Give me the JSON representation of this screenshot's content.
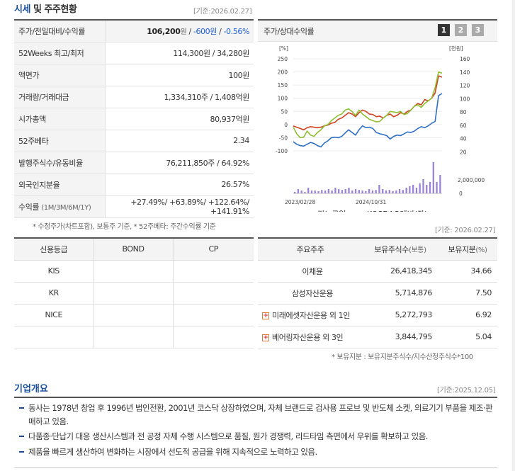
{
  "price_section": {
    "title_highlight": "시세",
    "title_rest": " 및 주주현황",
    "date": "[기준:2026.02.27]",
    "rows": [
      {
        "label": "주가/전일대비/수익률",
        "price": "106,200",
        "price_unit": "원",
        "sep1": " / ",
        "change": "-600",
        "change_unit": "원",
        "sep2": " / ",
        "rate": "-0.56%"
      },
      {
        "label": "52Weeks 최고/최저",
        "value": "114,300원 / 34,280원"
      },
      {
        "label": "액면가",
        "value": "100원"
      },
      {
        "label": "거래량/거래대금",
        "value": "1,334,310주 / 1,408억원"
      },
      {
        "label": "시가총액",
        "value": "80,937억원"
      },
      {
        "label": "52주베타",
        "value": "2.34"
      },
      {
        "label": "발행주식수/유동비율",
        "value": "76,211,850주 / 64.92%"
      },
      {
        "label": "외국인지분율",
        "value": "26.57%"
      }
    ],
    "returns": {
      "label": "수익률",
      "periods": "(1M/3M/6M/1Y)",
      "value": "+27.49%/ +63.89%/ +122.64%/ +141.91%"
    },
    "footnote": "* 수정주가(차트포함), 보통주 기준, * 52주베타: 주간수익률 기준"
  },
  "chart_box": {
    "title": "주가/상대수익률",
    "pages": [
      "1",
      "2",
      "3"
    ]
  },
  "chart_data": {
    "type": "line",
    "left_axis_unit": "[%]",
    "right_axis_unit": "[천원]",
    "left_ticks": [
      "250",
      "200",
      "150",
      "100",
      "50",
      "0",
      "-50",
      "-100"
    ],
    "right_ticks": [
      "160",
      "140",
      "120",
      "100",
      "80",
      "60",
      "40",
      "20"
    ],
    "volume_ticks": [
      "2,000,000",
      "0"
    ],
    "x_ticks": [
      "2023/02/28",
      "2024/10/31"
    ],
    "ylim_left": [
      -100,
      250
    ],
    "series": [
      {
        "name": "리노공업",
        "color": "#2e6fc6",
        "values": [
          -65,
          -75,
          -80,
          -82,
          -75,
          -68,
          -72,
          -80,
          -85,
          -70,
          -62,
          -50,
          -48,
          -50,
          -45,
          -32,
          -20,
          -30,
          -40,
          -20,
          -5,
          -12,
          -10,
          -15,
          -30,
          -35,
          -38,
          -42,
          -55,
          -45,
          -40,
          -42,
          -35,
          -28,
          -30,
          -25,
          -15,
          -8,
          -12,
          -5,
          5,
          12,
          110,
          118
        ]
      },
      {
        "name": "KOSDAQ대비(좌)",
        "color": "#d0401e",
        "values": [
          -5,
          -10,
          -15,
          -20,
          -12,
          -8,
          -10,
          -12,
          -10,
          -5,
          -2,
          5,
          8,
          20,
          25,
          35,
          45,
          40,
          30,
          45,
          55,
          50,
          40,
          38,
          30,
          32,
          25,
          35,
          40,
          30,
          35,
          45,
          40,
          50,
          55,
          70,
          80,
          75,
          95,
          90,
          100,
          120,
          185,
          180
        ]
      },
      {
        "name": "코스닥 전기·전자대비(좌)",
        "color": "#8dbf2e",
        "values": [
          -10,
          -35,
          -50,
          -48,
          -25,
          -40,
          -45,
          -30,
          -20,
          -5,
          0,
          15,
          25,
          35,
          40,
          55,
          60,
          50,
          35,
          55,
          40,
          30,
          20,
          15,
          10,
          12,
          25,
          35,
          50,
          48,
          45,
          50,
          38,
          42,
          55,
          70,
          75,
          65,
          80,
          90,
          100,
          140,
          200,
          195
        ]
      }
    ],
    "volume": {
      "name": "거래량",
      "color": "#9a82d6",
      "values": [
        0.05,
        0.15,
        0.1,
        0.05,
        0.2,
        0.1,
        0.1,
        0.08,
        0.12,
        0.1,
        0.15,
        0.1,
        0.2,
        0.15,
        0.12,
        0.15,
        0.2,
        0.1,
        0.15,
        0.12,
        0.1,
        0.08,
        0.15,
        0.1,
        0.12,
        0.3,
        0.15,
        0.1,
        0.12,
        0.08,
        0.1,
        0.15,
        0.12,
        0.2,
        0.25,
        0.3,
        0.2,
        0.35,
        0.5,
        0.3,
        0.4,
        1.1,
        0.4,
        0.65
      ]
    },
    "legend": [
      {
        "name": "리노공업",
        "color": "#2e6fc6",
        "kind": "line"
      },
      {
        "name": "KOSDAQ대비(좌)",
        "color": "#d0401e",
        "kind": "line"
      },
      {
        "name": "코스닥 전기·전자대비(좌)",
        "color": "#8dbf2e",
        "kind": "line"
      },
      {
        "name": "거래량",
        "color": "#9a82d6",
        "kind": "box"
      }
    ]
  },
  "chart_date": "[기준: 2026.02.27]",
  "credit": {
    "headers": [
      "신용등급",
      "BOND",
      "CP"
    ],
    "rows": [
      {
        "name": "KIS",
        "bond": "",
        "cp": ""
      },
      {
        "name": "KR",
        "bond": "",
        "cp": ""
      },
      {
        "name": "NICE",
        "bond": "",
        "cp": ""
      },
      {
        "name": "",
        "bond": "",
        "cp": ""
      }
    ]
  },
  "holders": {
    "headers": [
      "주요주주",
      "보유주식수",
      "(보통)",
      "보유지분",
      "(%)"
    ],
    "rows": [
      {
        "name": "이채윤",
        "shares": "26,418,345",
        "pct": "34.66",
        "expand": false
      },
      {
        "name": "삼성자산운용",
        "shares": "5,714,876",
        "pct": "7.50",
        "expand": false
      },
      {
        "name": "미래에셋자산운용 외 1인",
        "shares": "5,272,793",
        "pct": "6.92",
        "expand": true
      },
      {
        "name": "베어링자산운용 외 3인",
        "shares": "3,844,795",
        "pct": "5.04",
        "expand": true
      }
    ],
    "footnote": "* 보유지분 : 보유지분주식수/지수산정주식수*100"
  },
  "overview": {
    "title": "기업개요",
    "date": "[기준:2025.12.05]",
    "items": [
      "동사는 1978년 창업 후 1996년 법인전환, 2001년 코스닥 상장하였으며, 자체 브랜드로 검사용 프로브 및 반도체 소켓, 의료기기 부품을 제조·판매하고 있음.",
      "다품종·단납기 대응 생산시스템과 전 공정 자체 수행 시스템으로 품질, 원가 경쟁력, 리드타임 측면에서 우위를 확보하고 있음.",
      "제품을 빠르게 생산하여 변화하는 시장에서 선도적 공급을 위해 지속적으로 노력하고 있음."
    ]
  }
}
